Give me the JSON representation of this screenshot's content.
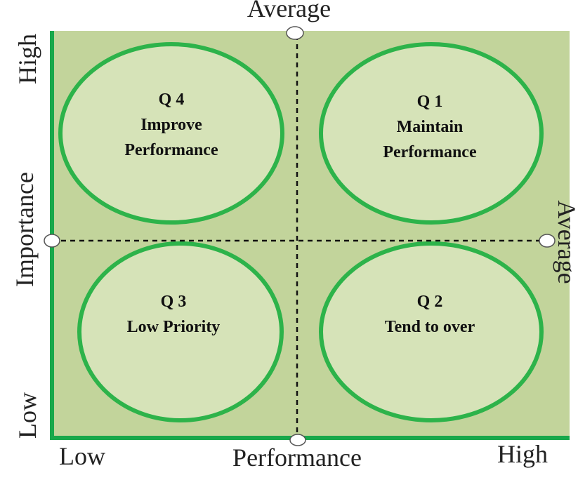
{
  "colors": {
    "plot_fill": "#c2d49b",
    "ellipse_fill": "#d6e3b8",
    "ellipse_stroke": "#2db34a",
    "axis_line": "#18a84b",
    "divider": "#111111"
  },
  "axes": {
    "top_label": "Average",
    "right_label": "Average",
    "x_title": "Performance",
    "x_low": "Low",
    "x_high": "High",
    "y_title": "Importance",
    "y_low": "Low",
    "y_high": "High"
  },
  "quadrants": {
    "q1": {
      "id": "Q 1",
      "lines": [
        "Maintain",
        "Performance"
      ]
    },
    "q2": {
      "id": "Q 2",
      "lines": [
        "Tend to over"
      ]
    },
    "q3": {
      "id": "Q 3",
      "lines": [
        "Low Priority"
      ]
    },
    "q4": {
      "id": "Q 4",
      "lines": [
        "Improve",
        "Performance"
      ]
    }
  }
}
